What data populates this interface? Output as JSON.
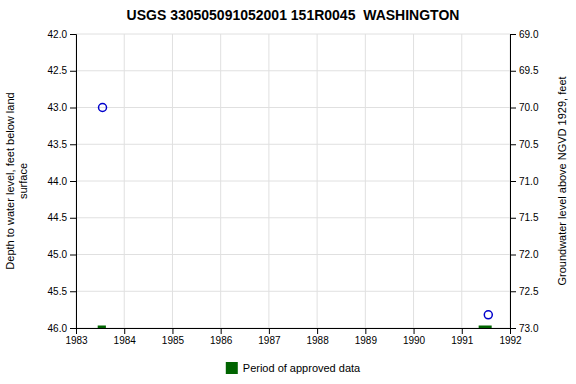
{
  "chart_data": {
    "type": "scatter",
    "title": "USGS 330505091052001 151R0045  WASHINGTON",
    "ylabel": "Depth to water level, feet below land\n surface",
    "y2label": "Groundwater level above NGVD 1929, feet",
    "xlim": [
      1983,
      1992
    ],
    "ylim": [
      46,
      42
    ],
    "y2lim": [
      73,
      69
    ],
    "xticks": [
      1983,
      1984,
      1985,
      1986,
      1987,
      1988,
      1989,
      1990,
      1991,
      1992
    ],
    "yticks": [
      {
        "value": 42,
        "label": "42.0"
      },
      42.5,
      {
        "value": 43,
        "label": "43.0"
      },
      43.5,
      {
        "value": 44,
        "label": "44.0"
      },
      44.5,
      {
        "value": 45,
        "label": "45.0"
      },
      45.5,
      {
        "value": 46,
        "label": "46.0"
      }
    ],
    "y2ticks": [
      {
        "value": 69,
        "label": "69.0"
      },
      69.5,
      {
        "value": 70,
        "label": "70.0"
      },
      70.5,
      {
        "value": 71,
        "label": "71.0"
      },
      71.5,
      {
        "value": 72,
        "label": "72.0"
      },
      72.5,
      {
        "value": 73,
        "label": "73.0"
      }
    ],
    "grid": true,
    "legend": "bottom",
    "series": [
      {
        "type": "scatter",
        "marker": "open-circle",
        "color": "#0000cc",
        "x": [
          1983.55,
          1991.55
        ],
        "values": [
          43,
          45.82
        ]
      },
      {
        "name": "Period of approved data",
        "type": "line",
        "line_style": "solid",
        "color": "#006400",
        "x": [
          1983.45,
          1983.62,
          null,
          1991.35,
          1991.62
        ],
        "values": [
          46,
          46,
          null,
          46,
          46
        ]
      }
    ]
  }
}
